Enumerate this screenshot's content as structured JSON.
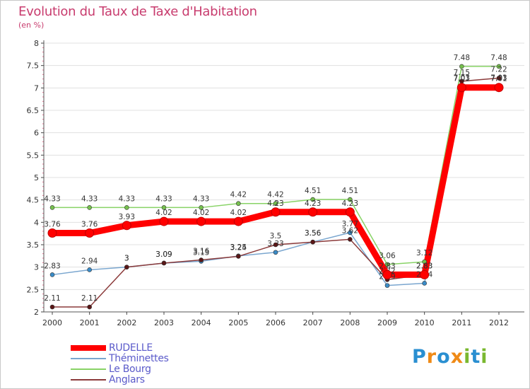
{
  "title": "Evolution du Taux de Taxe d'Habitation",
  "subtitle": "(en %)",
  "logo": [
    "P",
    "r",
    "o",
    "x",
    "i",
    "t",
    "i"
  ],
  "colors": {
    "accent": "#c83c6e",
    "grid": "#e0e0e0",
    "logo": [
      "#2a8fd1",
      "#ef8a16",
      "#2a8fd1",
      "#ef8a16",
      "#7ab82f",
      "#2a8fd1",
      "#7ab82f"
    ]
  },
  "chart_data": {
    "type": "line",
    "title": "Evolution du Taux de Taxe d'Habitation",
    "ylabel": "(en %)",
    "xlabel": "",
    "ylim": [
      2,
      8
    ],
    "yticks": [
      "2",
      "2.5",
      "3",
      "3.5",
      "4",
      "4.5",
      "5",
      "5.5",
      "6",
      "6.5",
      "7",
      "7.5",
      "8"
    ],
    "ytick_values": [
      2,
      2.5,
      3,
      3.5,
      4,
      4.5,
      5,
      5.5,
      6,
      6.5,
      7,
      7.5,
      8
    ],
    "categories": [
      "2000",
      "2001",
      "2002",
      "2003",
      "2004",
      "2005",
      "2006",
      "2007",
      "2008",
      "2009",
      "2010",
      "2011",
      "2012"
    ],
    "legend_position": "bottom-left",
    "series": [
      {
        "name": "Le Bourg",
        "color": "#88d366",
        "marker": "#76c04e",
        "values": [
          4.33,
          4.33,
          4.33,
          4.33,
          4.33,
          4.42,
          4.42,
          4.51,
          4.51,
          3.06,
          3.12,
          7.48,
          7.48
        ],
        "labels": [
          "4.33",
          "4.33",
          "4.33",
          "4.33",
          "4.33",
          "4.42",
          "4.42",
          "4.51",
          "4.51",
          "3.06",
          "3.12",
          "7.48",
          "7.48"
        ]
      },
      {
        "name": "Théminettes",
        "color": "#7aa6cf",
        "marker": "#3a8cc8",
        "values": [
          2.83,
          2.94,
          3.0,
          3.09,
          3.13,
          3.25,
          3.33,
          3.56,
          3.77,
          2.59,
          2.64,
          7.03,
          7.03
        ],
        "labels": [
          "2.83",
          "2.94",
          "3",
          "3.09",
          "3.13",
          "3.25",
          "3.33",
          "3.56",
          "3.77",
          "2.59",
          "2.64",
          "7.03",
          "7.03"
        ]
      },
      {
        "name": "Anglars",
        "color": "#8b3a3a",
        "marker": "#5a1616",
        "values": [
          2.11,
          2.11,
          3.0,
          3.09,
          3.16,
          3.24,
          3.5,
          3.56,
          3.62,
          2.72,
          2.83,
          7.15,
          7.22
        ],
        "labels": [
          "2.11",
          "2.11",
          "3",
          "3.09",
          "3.16",
          "3.24",
          "3.5",
          "3.56",
          "3.62",
          "2.72",
          "2.83",
          "7.15",
          "7.22"
        ]
      },
      {
        "name": "RUDELLE",
        "color": "#ff0000",
        "marker": "#ff0000",
        "values": [
          3.76,
          3.76,
          3.93,
          4.02,
          4.02,
          4.02,
          4.23,
          4.23,
          4.23,
          2.83,
          2.83,
          7.01,
          7.01
        ],
        "labels": [
          "3.76",
          "3.76",
          "3.93",
          "4.02",
          "4.02",
          "4.02",
          "4.23",
          "4.23",
          "4.23",
          "2.83",
          "2.83",
          "7.01",
          "7.01"
        ]
      }
    ],
    "legend": [
      "RUDELLE",
      "Théminettes",
      "Le Bourg",
      "Anglars"
    ]
  }
}
